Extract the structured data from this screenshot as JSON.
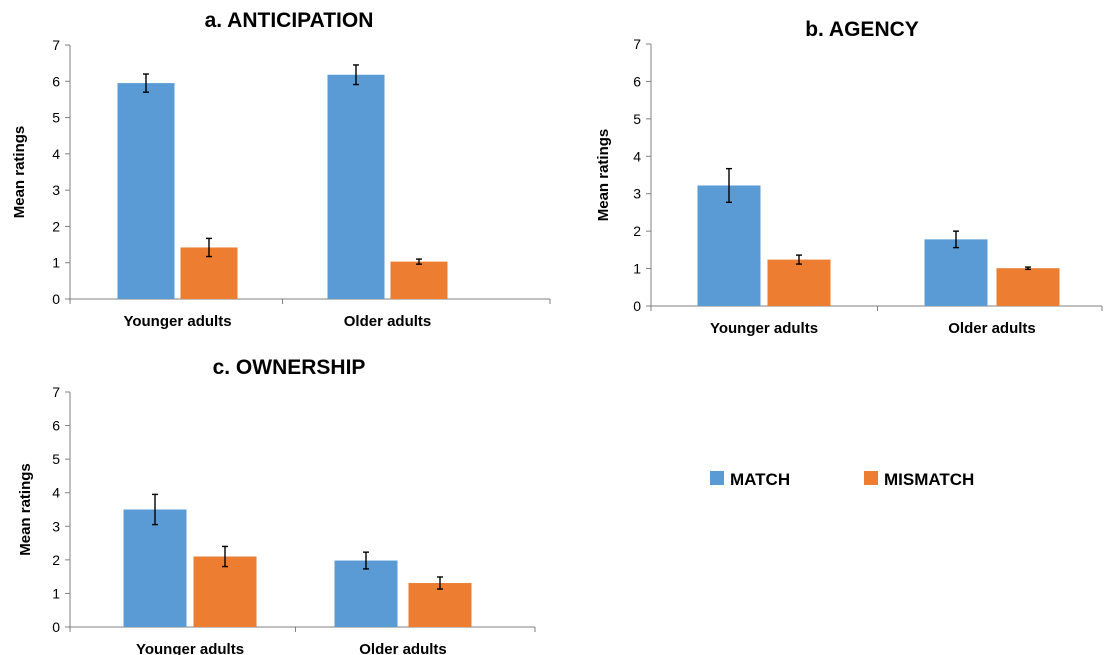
{
  "legend": [
    {
      "name": "MATCH",
      "color": "#5B9BD5"
    },
    {
      "name": "MISMATCH",
      "color": "#ED7D31"
    }
  ],
  "chart_data": [
    {
      "type": "bar",
      "title": "a. ANTICIPATION",
      "ylabel": "Mean ratings",
      "xlabel": "",
      "categories": [
        "Younger adults",
        "Older adults"
      ],
      "ylim": [
        0,
        7
      ],
      "yticks": [
        0,
        1,
        2,
        3,
        4,
        5,
        6,
        7
      ],
      "series": [
        {
          "name": "MATCH",
          "color": "#5B9BD5",
          "values": [
            5.95,
            6.18
          ],
          "errors": [
            0.25,
            0.27
          ]
        },
        {
          "name": "MISMATCH",
          "color": "#ED7D31",
          "values": [
            1.42,
            1.03
          ],
          "errors": [
            0.25,
            0.07
          ]
        }
      ],
      "grid": false
    },
    {
      "type": "bar",
      "title": "b. AGENCY",
      "ylabel": "Mean ratings",
      "xlabel": "",
      "categories": [
        "Younger adults",
        "Older adults"
      ],
      "ylim": [
        0,
        7
      ],
      "yticks": [
        0,
        1,
        2,
        3,
        4,
        5,
        6,
        7
      ],
      "series": [
        {
          "name": "MATCH",
          "color": "#5B9BD5",
          "values": [
            3.22,
            1.78
          ],
          "errors": [
            0.45,
            0.22
          ]
        },
        {
          "name": "MISMATCH",
          "color": "#ED7D31",
          "values": [
            1.24,
            1.01
          ],
          "errors": [
            0.12,
            0.03
          ]
        }
      ],
      "grid": false
    },
    {
      "type": "bar",
      "title": "c. OWNERSHIP",
      "ylabel": "Mean ratings",
      "xlabel": "",
      "categories": [
        "Younger adults",
        "Older adults"
      ],
      "ylim": [
        0,
        7
      ],
      "yticks": [
        0,
        1,
        2,
        3,
        4,
        5,
        6,
        7
      ],
      "series": [
        {
          "name": "MATCH",
          "color": "#5B9BD5",
          "values": [
            3.5,
            1.98
          ],
          "errors": [
            0.45,
            0.25
          ]
        },
        {
          "name": "MISMATCH",
          "color": "#ED7D31",
          "values": [
            2.1,
            1.31
          ],
          "errors": [
            0.3,
            0.18
          ]
        }
      ],
      "grid": false
    }
  ]
}
